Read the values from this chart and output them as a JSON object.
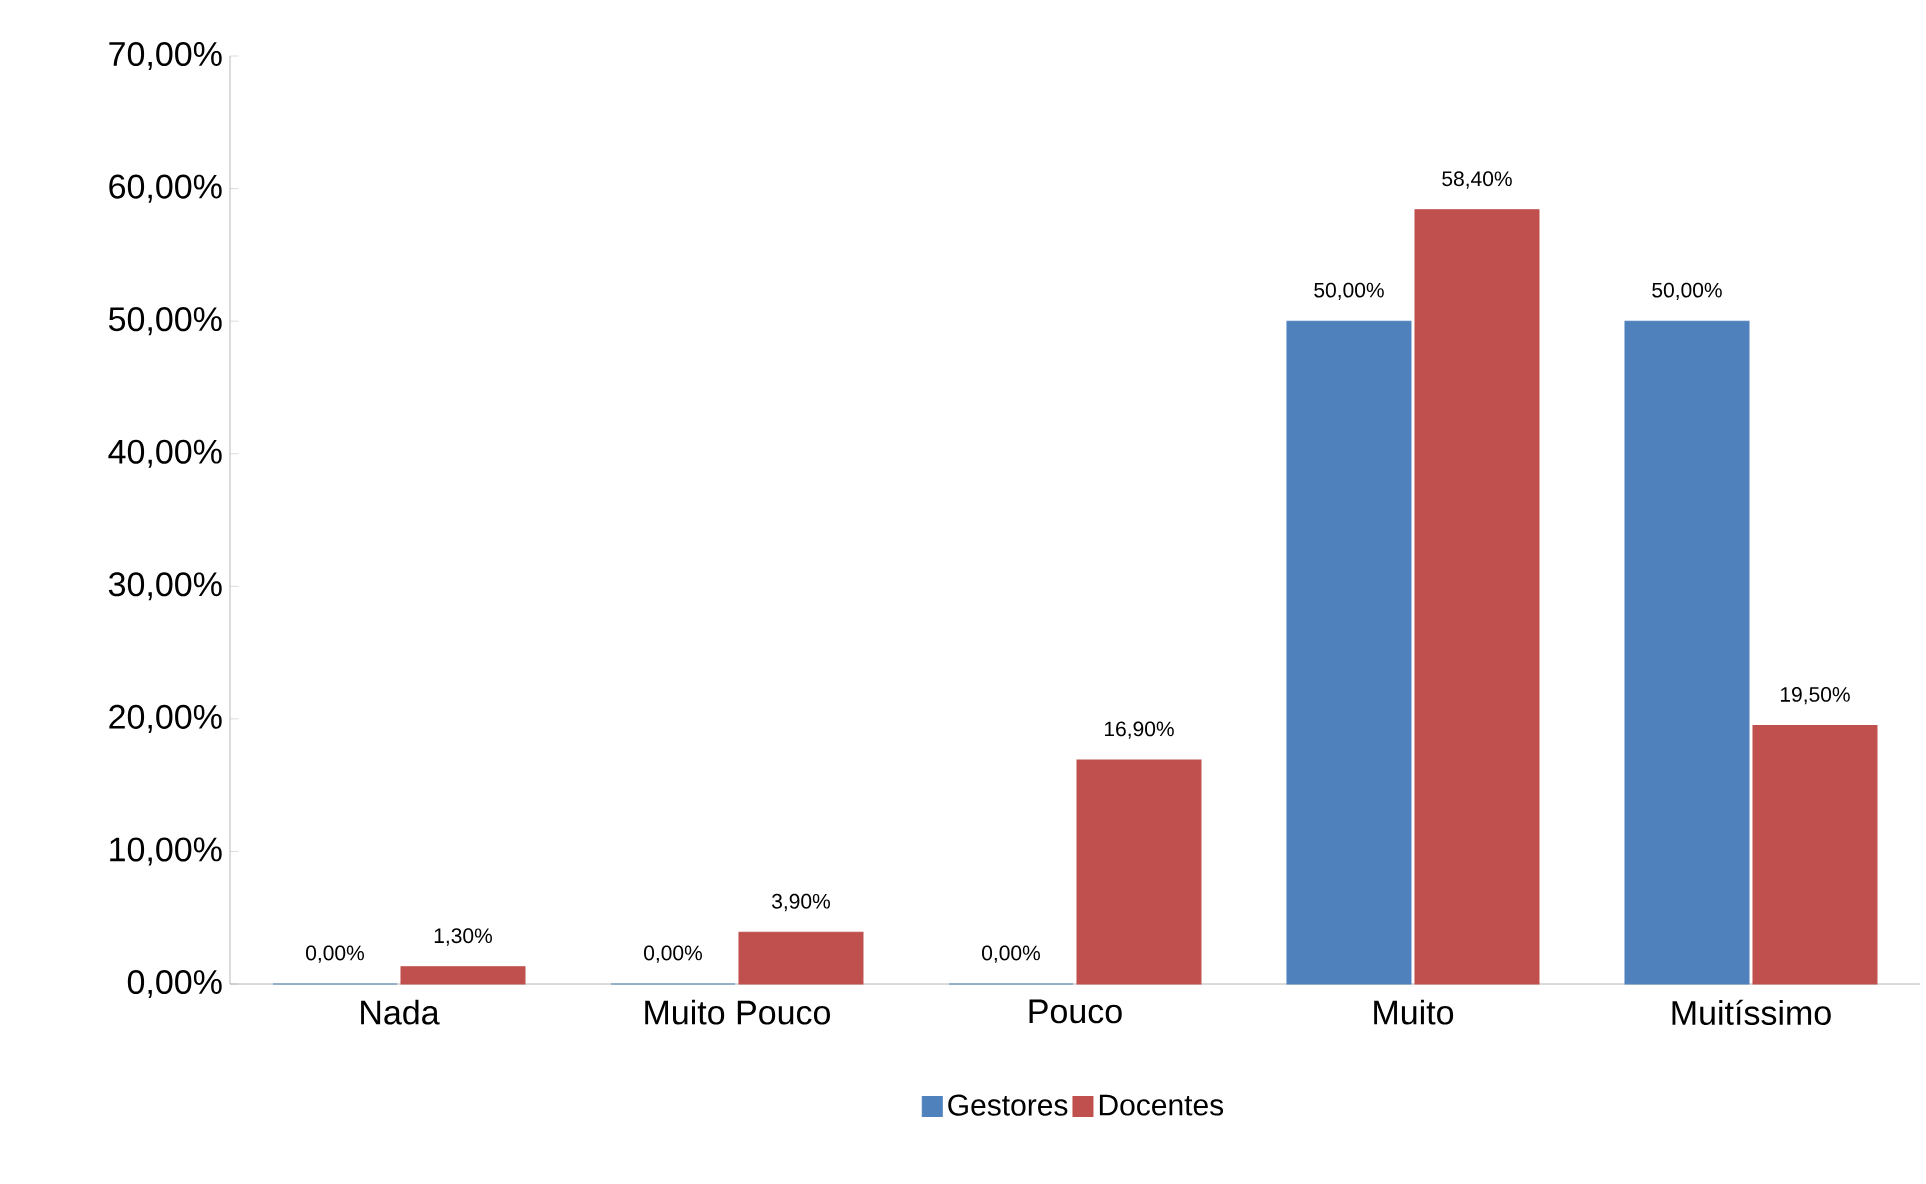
{
  "chart_data": {
    "type": "bar",
    "categories": [
      "Nada",
      "Muito Pouco",
      "Pouco",
      "Muito",
      "Muitíssimo"
    ],
    "series": [
      {
        "name": "Gestores",
        "color": "#4f81bd",
        "values": [
          0,
          0,
          0,
          50,
          50
        ],
        "value_labels": [
          "0,00%",
          "0,00%",
          "0,00%",
          "50,00%",
          "50,00%"
        ]
      },
      {
        "name": "Docentes",
        "color": "#c0504d",
        "values": [
          1.3,
          3.9,
          16.9,
          58.4,
          19.5
        ],
        "value_labels": [
          "1,30%",
          "3,90%",
          "16,90%",
          "58,40%",
          "19,50%"
        ]
      }
    ],
    "ylim": [
      0,
      70
    ],
    "yticks": [
      {
        "value": 0,
        "label": "0,00%"
      },
      {
        "value": 10,
        "label": "10,00%"
      },
      {
        "value": 20,
        "label": "20,00%"
      },
      {
        "value": 30,
        "label": "30,00%"
      },
      {
        "value": 40,
        "label": "40,00%"
      },
      {
        "value": 50,
        "label": "50,00%"
      },
      {
        "value": 60,
        "label": "60,00%"
      },
      {
        "value": 70,
        "label": "70,00%"
      }
    ],
    "legend": "bottom"
  }
}
